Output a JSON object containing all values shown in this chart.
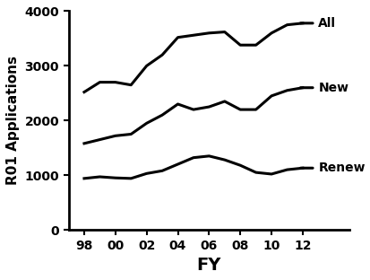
{
  "fiscal_years": [
    98,
    99,
    100,
    101,
    102,
    103,
    104,
    105,
    106,
    107,
    108,
    109,
    110,
    111,
    112
  ],
  "fy_labels": [
    "98",
    "00",
    "02",
    "04",
    "06",
    "08",
    "10",
    "12"
  ],
  "fy_ticks": [
    98,
    100,
    102,
    104,
    106,
    108,
    110,
    112
  ],
  "all_series": [
    2520,
    2700,
    2700,
    2650,
    3000,
    3200,
    3520,
    3560,
    3600,
    3620,
    3380,
    3380,
    3600,
    3750,
    3780
  ],
  "new_series": [
    1580,
    1650,
    1720,
    1750,
    1950,
    2100,
    2300,
    2200,
    2250,
    2350,
    2200,
    2200,
    2450,
    2550,
    2600
  ],
  "renew_series": [
    940,
    970,
    950,
    940,
    1030,
    1080,
    1200,
    1320,
    1350,
    1280,
    1180,
    1050,
    1020,
    1100,
    1130
  ],
  "ylim": [
    0,
    4000
  ],
  "yticks": [
    0,
    1000,
    2000,
    3000,
    4000
  ],
  "xlabel": "FY",
  "ylabel": "R01 Applications",
  "line_color": "#000000",
  "linewidth": 2.2,
  "label_all": "All",
  "label_new": "New",
  "label_renew": "Renew",
  "bg_color": "#ffffff",
  "tick_fontsize": 10,
  "xlabel_fontsize": 14,
  "ylabel_fontsize": 11
}
